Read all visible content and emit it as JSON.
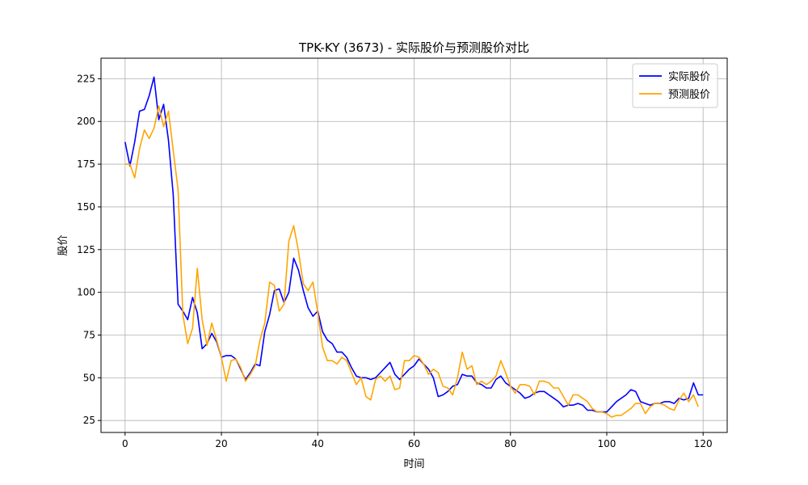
{
  "chart_data": {
    "type": "line",
    "title": "TPK-KY (3673) - 实际股价与预测股价对比",
    "xlabel": "时间",
    "ylabel": "股价",
    "xlim": [
      -5,
      125
    ],
    "ylim": [
      18,
      237
    ],
    "xticks": [
      0,
      20,
      40,
      60,
      80,
      100,
      120
    ],
    "yticks": [
      25,
      50,
      75,
      100,
      125,
      150,
      175,
      200,
      225
    ],
    "grid": true,
    "legend_position": "top-right",
    "series": [
      {
        "name": "实际股价",
        "color": "#0000ff",
        "values": [
          188,
          174,
          188,
          206,
          207,
          215,
          226,
          201,
          210,
          189,
          157,
          93,
          89,
          84,
          97,
          88,
          67,
          70,
          76,
          71,
          62,
          63,
          63,
          61,
          55,
          49,
          53,
          58,
          57,
          77,
          87,
          101,
          102,
          94,
          100,
          120,
          113,
          101,
          91,
          86,
          89,
          77,
          72,
          70,
          65,
          65,
          62,
          56,
          51,
          50,
          50,
          49,
          50,
          53,
          56,
          59,
          52,
          49,
          52,
          55,
          57,
          61,
          58,
          55,
          50,
          39,
          40,
          42,
          45,
          46,
          52,
          51,
          51,
          47,
          46,
          44,
          44,
          49,
          51,
          47,
          45,
          43,
          41,
          38,
          39,
          41,
          42,
          42,
          40,
          38,
          36,
          33,
          34,
          34,
          35,
          34,
          31,
          31,
          30,
          30,
          30,
          33,
          36,
          38,
          40,
          43,
          42,
          36,
          35,
          34,
          35,
          35,
          36,
          36,
          35,
          38,
          37,
          38,
          47,
          40,
          40
        ]
      },
      {
        "name": "预测股价",
        "color": "#ffa500",
        "values": [
          175,
          175,
          167,
          184,
          195,
          190,
          196,
          209,
          197,
          206,
          183,
          160,
          87,
          70,
          79,
          114,
          84,
          69,
          82,
          72,
          62,
          48,
          60,
          61,
          56,
          48,
          52,
          57,
          72,
          82,
          106,
          104,
          89,
          93,
          130,
          139,
          124,
          105,
          101,
          106,
          88,
          68,
          60,
          60,
          58,
          62,
          60,
          53,
          46,
          50,
          39,
          37,
          49,
          51,
          48,
          51,
          43,
          44,
          60,
          60,
          63,
          62,
          58,
          52,
          55,
          53,
          45,
          44,
          40,
          50,
          65,
          55,
          57,
          46,
          48,
          46,
          48,
          51,
          60,
          53,
          45,
          41,
          46,
          46,
          45,
          40,
          48,
          48,
          47,
          44,
          44,
          39,
          34,
          40,
          40,
          38,
          36,
          32,
          30,
          30,
          29,
          27,
          28,
          28,
          30,
          32,
          35,
          35,
          29,
          33,
          35,
          35,
          34,
          32,
          31,
          37,
          41,
          36,
          40,
          33
        ]
      }
    ]
  }
}
